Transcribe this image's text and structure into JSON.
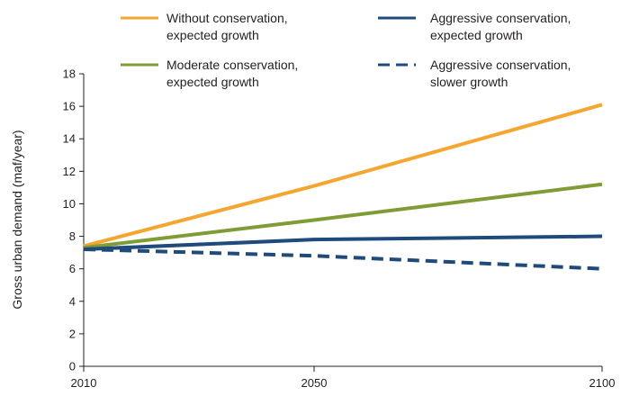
{
  "chart_data": {
    "type": "line",
    "x": [
      2010,
      2050,
      2100
    ],
    "x_ticks": [
      "2010",
      "2050",
      "2100"
    ],
    "ylabel": "Gross urban demand (maf/year)",
    "xlabel": "",
    "ylim": [
      0,
      18
    ],
    "y_ticks": [
      "0",
      "2",
      "4",
      "6",
      "8",
      "10",
      "12",
      "14",
      "16",
      "18"
    ],
    "grid": false,
    "legend_position": "top",
    "series": [
      {
        "name": "Without conservation, expected growth",
        "name_lines": [
          "Without conservation,",
          "expected growth"
        ],
        "values": [
          7.4,
          11.1,
          16.1
        ],
        "color": "#f5a631",
        "dash": false
      },
      {
        "name": "Moderate conservation, expected growth",
        "name_lines": [
          "Moderate conservation,",
          "expected growth"
        ],
        "values": [
          7.3,
          9.0,
          11.2
        ],
        "color": "#7f9c36",
        "dash": false
      },
      {
        "name": "Aggressive conservation, expected growth",
        "name_lines": [
          "Aggressive conservation,",
          "expected growth"
        ],
        "values": [
          7.2,
          7.8,
          8.0
        ],
        "color": "#1f4a7c",
        "dash": false
      },
      {
        "name": "Aggressive conservation, slower growth",
        "name_lines": [
          "Aggressive conservation,",
          "slower growth"
        ],
        "values": [
          7.2,
          6.8,
          6.0
        ],
        "color": "#1f4a7c",
        "dash": true
      }
    ]
  }
}
